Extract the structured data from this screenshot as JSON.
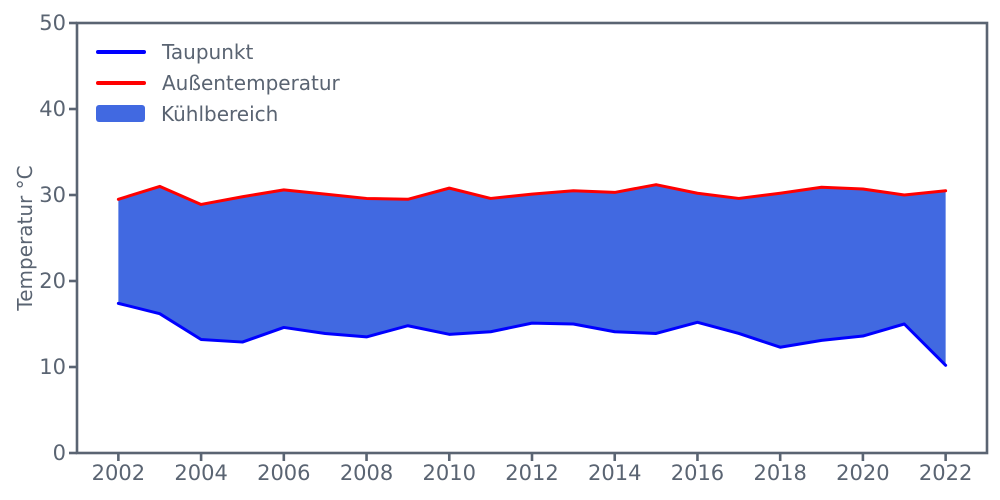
{
  "chart_data": {
    "type": "area",
    "title": "",
    "xlabel": "",
    "ylabel": "Temperatur °C",
    "xlim": [
      2001,
      2023
    ],
    "ylim": [
      0,
      50
    ],
    "xticks": [
      2002,
      2004,
      2006,
      2008,
      2010,
      2012,
      2014,
      2016,
      2018,
      2020,
      2022
    ],
    "yticks": [
      0,
      10,
      20,
      30,
      40,
      50
    ],
    "grid": false,
    "axis_color": "#5a6472",
    "x": [
      2002,
      2003,
      2004,
      2005,
      2006,
      2007,
      2008,
      2009,
      2010,
      2011,
      2012,
      2013,
      2014,
      2015,
      2016,
      2017,
      2018,
      2019,
      2020,
      2021,
      2022
    ],
    "series": [
      {
        "name": "Taupunkt",
        "type": "line",
        "color": "#0000ff",
        "values": [
          17.4,
          16.2,
          13.2,
          12.9,
          14.6,
          13.9,
          13.5,
          14.8,
          13.8,
          14.1,
          15.1,
          15.0,
          14.1,
          13.9,
          15.2,
          13.9,
          12.3,
          13.1,
          13.6,
          15.0,
          10.2
        ]
      },
      {
        "name": "Außentemperatur",
        "type": "line",
        "color": "#ff0000",
        "values": [
          29.5,
          31.0,
          28.9,
          29.8,
          30.6,
          30.1,
          29.6,
          29.5,
          30.8,
          29.6,
          30.1,
          30.5,
          30.3,
          31.2,
          30.2,
          29.6,
          30.2,
          30.9,
          30.7,
          30.0,
          30.5
        ]
      }
    ],
    "fill_between": {
      "name": "Kühlbereich",
      "color": "#4169e1",
      "lower": "Taupunkt",
      "upper": "Außentemperatur"
    },
    "legend": {
      "position": "upper-left",
      "frame": false,
      "entries": [
        {
          "label": "Taupunkt",
          "swatch": "line",
          "color": "#0000ff"
        },
        {
          "label": "Außentemperatur",
          "swatch": "line",
          "color": "#ff0000"
        },
        {
          "label": "Kühlbereich",
          "swatch": "patch",
          "color": "#4169e1"
        }
      ]
    }
  }
}
